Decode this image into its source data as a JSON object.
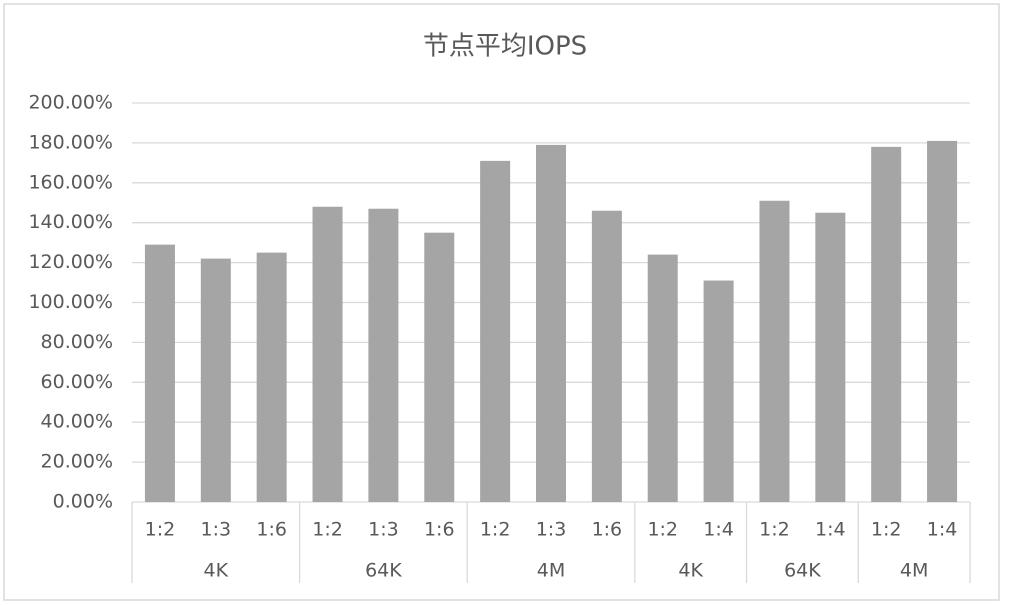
{
  "chart_data": {
    "type": "bar",
    "title": "节点平均IOPS",
    "groups": [
      {
        "name": "4K",
        "categories": [
          "1:2",
          "1:3",
          "1:6"
        ]
      },
      {
        "name": "64K",
        "categories": [
          "1:2",
          "1:3",
          "1:6"
        ]
      },
      {
        "name": "4M",
        "categories": [
          "1:2",
          "1:3",
          "1:6"
        ]
      },
      {
        "name": "4K",
        "categories": [
          "1:2",
          "1:4"
        ]
      },
      {
        "name": "64K",
        "categories": [
          "1:2",
          "1:4"
        ]
      },
      {
        "name": "4M",
        "categories": [
          "1:2",
          "1:4"
        ]
      }
    ],
    "values": [
      129,
      122,
      125,
      148,
      147,
      135,
      171,
      179,
      146,
      124,
      111,
      151,
      145,
      178,
      181
    ],
    "color": "#a5a5a5",
    "ylim": [
      0,
      200
    ],
    "yticks": [
      {
        "value": 0,
        "label": "0.00%"
      },
      {
        "value": 20,
        "label": "20.00%"
      },
      {
        "value": 40,
        "label": "40.00%"
      },
      {
        "value": 60,
        "label": "60.00%"
      },
      {
        "value": 80,
        "label": "80.00%"
      },
      {
        "value": 100,
        "label": "100.00%"
      },
      {
        "value": 120,
        "label": "120.00%"
      },
      {
        "value": 140,
        "label": "140.00%"
      },
      {
        "value": 160,
        "label": "160.00%"
      },
      {
        "value": 180,
        "label": "180.00%"
      },
      {
        "value": 200,
        "label": "200.00%"
      }
    ],
    "grid": true
  }
}
